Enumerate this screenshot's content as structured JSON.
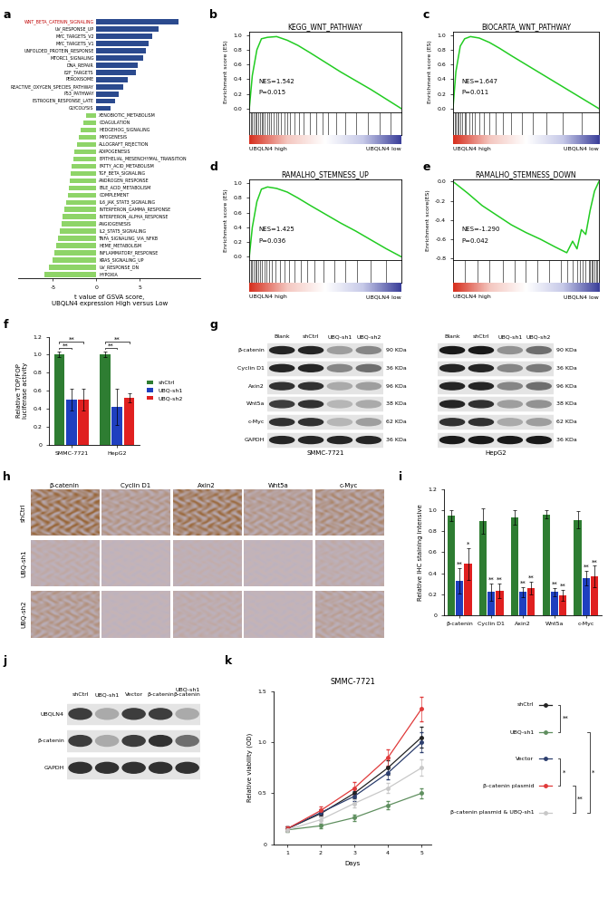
{
  "chart_data": [
    {
      "type": "bar",
      "panel": "a",
      "orientation": "horizontal",
      "tick_labels": "x",
      "x_label": "t value of GSVA score,\nUBQLN4 expression High versus Low",
      "categories": [
        "WNT_BETA_CATENIN_SIGNALING",
        "UV_RESPONSE_UP",
        "MYC_TARGETS_V2",
        "MYC_TARGETS_V1",
        "UNFOLDED_PROTEIN_RESPONSE",
        "MTORC1_SIGNALING",
        "DNA_REPAIR",
        "E2F_TARGETS",
        "PEROXISOME",
        "REACTIVE_OXYGEN_SPECIES_PATHWAY",
        "P53_PATHWAY",
        "ESTROGEN_RESPONSE_LATE",
        "GLYCOLYSIS",
        "XENOBIOTIC_METABOLISM",
        "COAGULATION",
        "HEDGEHOG_SIGNALING",
        "MYOGENESIS",
        "ALLOGRAFT_REJECTION",
        "ADIPOGENESIS",
        "EPITHELIAL_MESENCHYMAL_TRANSITION",
        "FATTY_ACID_METABOLISM",
        "TGF_BETA_SIGNALING",
        "ANDROGEN_RESPONSE",
        "BILE_ACID_METABOLISM",
        "COMPLEMENT",
        "IL6_JAK_STAT3_SIGNALING",
        "INTERFERON_GAMMA_RESPONSE",
        "INTERFERON_ALPHA_RESPONSE",
        "ANGIOGENESIS",
        "IL2_STAT5_SIGNALING",
        "TNFA_SIGNALING_VIA_NFKB",
        "HEME_METABOLISM",
        "INFLAMMATORY_RESPONSE",
        "KRAS_SIGNALING_UP",
        "UV_RESPONSE_DN",
        "HYPOXIA"
      ],
      "values": [
        9.5,
        7.2,
        6.4,
        6.0,
        5.7,
        5.4,
        4.8,
        4.5,
        3.6,
        3.1,
        2.6,
        2.1,
        1.6,
        -1.2,
        -1.5,
        -1.8,
        -2.0,
        -2.2,
        -2.5,
        -2.7,
        -2.9,
        -3.0,
        -3.1,
        -3.2,
        -3.3,
        -3.5,
        -3.7,
        -3.9,
        -4.0,
        -4.2,
        -4.4,
        -4.6,
        -4.8,
        -5.0,
        -5.5,
        -6.0
      ],
      "colors": [
        "#2b4a8e",
        "#2b4a8e",
        "#2b4a8e",
        "#2b4a8e",
        "#2b4a8e",
        "#2b4a8e",
        "#2b4a8e",
        "#2b4a8e",
        "#2b4a8e",
        "#2b4a8e",
        "#2b4a8e",
        "#2b4a8e",
        "#2b4a8e",
        "#8ed468",
        "#8ed468",
        "#8ed468",
        "#8ed468",
        "#8ed468",
        "#8ed468",
        "#8ed468",
        "#8ed468",
        "#8ed468",
        "#8ed468",
        "#8ed468",
        "#8ed468",
        "#8ed468",
        "#8ed468",
        "#8ed468",
        "#8ed468",
        "#8ed468",
        "#8ed468",
        "#8ed468",
        "#8ed468",
        "#8ed468",
        "#8ed468",
        "#8ed468"
      ],
      "xlim": [
        -9,
        12
      ],
      "xticks": [
        -5,
        0,
        5
      ]
    },
    {
      "type": "gsea",
      "panel": "b",
      "title": "KEGG_WNT_PATHWAY",
      "y_label": "Enrichment score (ES)",
      "color": "#22cc22",
      "tick_labels": "y",
      "x": [
        0,
        2,
        5,
        8,
        12,
        18,
        25,
        32,
        40,
        50,
        60,
        70,
        80,
        90,
        100
      ],
      "values": [
        0,
        0.45,
        0.8,
        0.95,
        0.97,
        0.98,
        0.93,
        0.86,
        0.76,
        0.63,
        0.5,
        0.38,
        0.26,
        0.13,
        0
      ],
      "hits": [
        1,
        2,
        3,
        4,
        5,
        6,
        7,
        8,
        9,
        10,
        12,
        13,
        14,
        16,
        18,
        19,
        21,
        23,
        25,
        27,
        30,
        33,
        36,
        40,
        44,
        48,
        52,
        57,
        63,
        70,
        78,
        86,
        93
      ],
      "xlim": [
        0,
        100
      ],
      "xticks": [],
      "ylim": [
        -0.05,
        1.05
      ],
      "yticks": [
        0.0,
        0.2,
        0.4,
        0.6,
        0.8,
        1.0
      ],
      "annotations": [
        "NES=1.542",
        "P=0.015"
      ],
      "x_labels": [
        "UBQLN4 high",
        "UBQLN4 low"
      ]
    },
    {
      "type": "gsea",
      "panel": "c",
      "title": "BIOCARTA_WNT_PATHWAY",
      "y_label": "Enrichment score (ES)",
      "color": "#22cc22",
      "tick_labels": "y",
      "x": [
        0,
        2,
        5,
        8,
        12,
        18,
        25,
        32,
        40,
        50,
        60,
        70,
        80,
        90,
        100
      ],
      "values": [
        0,
        0.5,
        0.85,
        0.95,
        0.98,
        0.96,
        0.9,
        0.82,
        0.72,
        0.6,
        0.48,
        0.36,
        0.24,
        0.12,
        0
      ],
      "hits": [
        1,
        2,
        3,
        4,
        5,
        6,
        8,
        9,
        11,
        13,
        15,
        18,
        21,
        25,
        29,
        34,
        40,
        47,
        55,
        64,
        75,
        88
      ],
      "xlim": [
        0,
        100
      ],
      "xticks": [],
      "ylim": [
        -0.05,
        1.05
      ],
      "yticks": [
        0.0,
        0.2,
        0.4,
        0.6,
        0.8,
        1.0
      ],
      "annotations": [
        "NES=1.647",
        "P=0.011"
      ],
      "x_labels": [
        "UBQLN4 high",
        "UBQLN4 low"
      ]
    },
    {
      "type": "gsea",
      "panel": "d",
      "title": "RAMALHO_STEMNESS_UP",
      "y_label": "Enrichment score (ES)",
      "color": "#22cc22",
      "tick_labels": "y",
      "x": [
        0,
        2,
        5,
        8,
        12,
        18,
        25,
        32,
        40,
        50,
        60,
        70,
        80,
        90,
        100
      ],
      "values": [
        0,
        0.4,
        0.75,
        0.92,
        0.95,
        0.93,
        0.88,
        0.8,
        0.7,
        0.58,
        0.46,
        0.35,
        0.23,
        0.11,
        0
      ],
      "hits": [
        1,
        2,
        3,
        4,
        5,
        6,
        7,
        8,
        10,
        11,
        13,
        15,
        17,
        20,
        23,
        26,
        30,
        34,
        38,
        43,
        49,
        56,
        63,
        71,
        80,
        90
      ],
      "xlim": [
        0,
        100
      ],
      "xticks": [],
      "ylim": [
        -0.05,
        1.05
      ],
      "yticks": [
        0.0,
        0.2,
        0.4,
        0.6,
        0.8,
        1.0
      ],
      "annotations": [
        "NES=1.425",
        "P=0.036"
      ],
      "x_labels": [
        "UBQLN4 high",
        "UBQLN4 low"
      ]
    },
    {
      "type": "gsea",
      "panel": "e",
      "title": "RAMALHO_STEMNESS_DOWN",
      "y_label": "Enrichment score(ES)",
      "color": "#22cc22",
      "tick_labels": "y",
      "x": [
        0,
        10,
        20,
        30,
        40,
        50,
        60,
        70,
        78,
        82,
        85,
        88,
        91,
        94,
        97,
        100
      ],
      "values": [
        0,
        -0.12,
        -0.25,
        -0.35,
        -0.45,
        -0.53,
        -0.6,
        -0.68,
        -0.74,
        -0.62,
        -0.7,
        -0.5,
        -0.55,
        -0.3,
        -0.1,
        0
      ],
      "hits": [
        8,
        17,
        25,
        34,
        42,
        50,
        58,
        66,
        74,
        78,
        82,
        85,
        87,
        89,
        91,
        93,
        94,
        95,
        96,
        97,
        98,
        99
      ],
      "xlim": [
        0,
        100
      ],
      "xticks": [],
      "ylim": [
        -0.82,
        0.02
      ],
      "yticks": [
        -0.8,
        -0.6,
        -0.4,
        -0.2,
        0.0
      ],
      "annotations": [
        "NES=-1.290",
        "P=0.042"
      ],
      "x_labels": [
        "UBQLN4 high",
        "UBQLN4 low"
      ]
    },
    {
      "type": "bar",
      "panel": "f",
      "y_label": "Relative TOP/FOP\nluciferase activity",
      "legend": "right",
      "categories": [
        "SMMC-7721",
        "HepG2"
      ],
      "series": [
        {
          "name": "shCtrl",
          "color": "#2e7d32",
          "values": [
            1.0,
            1.0
          ],
          "errors": [
            0.03,
            0.03
          ]
        },
        {
          "name": "UBQ-sh1",
          "color": "#1f3fbf",
          "values": [
            0.5,
            0.42
          ],
          "errors": [
            0.12,
            0.2
          ]
        },
        {
          "name": "UBQ-sh2",
          "color": "#e02020",
          "values": [
            0.5,
            0.52
          ],
          "errors": [
            0.12,
            0.05
          ]
        }
      ],
      "significance": [
        {
          "category": 0,
          "pair": [
            0,
            1
          ],
          "text": "**"
        },
        {
          "category": 0,
          "pair": [
            0,
            2
          ],
          "text": "**"
        },
        {
          "category": 1,
          "pair": [
            0,
            1
          ],
          "text": "**"
        },
        {
          "category": 1,
          "pair": [
            0,
            2
          ],
          "text": "**"
        }
      ],
      "ylim": [
        0,
        1.2
      ],
      "yticks": [
        0,
        0.2,
        0.4,
        0.6,
        0.8,
        1.0,
        1.2
      ]
    },
    {
      "type": "blot",
      "panel": "g",
      "columns": [
        "Blank",
        "shCtrl",
        "UBQ-sh1",
        "UBQ-sh2"
      ],
      "rows": [
        "β-catenin",
        "Cyclin D1",
        "Axin2",
        "Wnt5a",
        "c-Myc",
        "GAPDH"
      ],
      "sizes": [
        "90 KDa",
        "36 KDa",
        "96 KDa",
        "38 KDa",
        "62 KDa",
        "36 KDa"
      ],
      "blocks": [
        {
          "name": "SMMC-7721",
          "intensity": [
            [
              0.9,
              0.9,
              0.4,
              0.5
            ],
            [
              0.9,
              0.9,
              0.5,
              0.6
            ],
            [
              0.85,
              0.85,
              0.35,
              0.4
            ],
            [
              0.8,
              0.85,
              0.3,
              0.35
            ],
            [
              0.85,
              0.85,
              0.3,
              0.4
            ],
            [
              0.9,
              0.9,
              0.9,
              0.9
            ]
          ]
        },
        {
          "name": "HepG2",
          "intensity": [
            [
              0.95,
              0.95,
              0.45,
              0.6
            ],
            [
              0.9,
              0.9,
              0.5,
              0.55
            ],
            [
              0.9,
              0.9,
              0.5,
              0.6
            ],
            [
              0.9,
              0.85,
              0.4,
              0.45
            ],
            [
              0.85,
              0.85,
              0.35,
              0.4
            ],
            [
              0.95,
              0.95,
              0.95,
              0.95
            ]
          ]
        }
      ]
    },
    {
      "type": "ihc",
      "panel": "h",
      "columns": [
        "β-catenin",
        "Cyclin D1",
        "Axin2",
        "Wnt5a",
        "c-Myc"
      ],
      "rows": [
        "shCtrl",
        "UBQ-sh1",
        "UBQ-sh2"
      ],
      "stain": [
        [
          0.9,
          0.5,
          0.85,
          0.5,
          0.6
        ],
        [
          0.3,
          0.2,
          0.25,
          0.2,
          0.3
        ],
        [
          0.5,
          0.2,
          0.3,
          0.2,
          0.4
        ]
      ]
    },
    {
      "type": "bar",
      "panel": "i",
      "y_label": "Relative IHC staining intensive",
      "categories": [
        "β-catenin",
        "Cyclin D1",
        "Axin2",
        "Wnt5a",
        "c-Myc"
      ],
      "series": [
        {
          "color": "#2e7d32",
          "values": [
            0.95,
            0.9,
            0.93,
            0.96,
            0.91
          ],
          "errors": [
            0.05,
            0.12,
            0.07,
            0.04,
            0.08
          ]
        },
        {
          "color": "#1f3fbf",
          "values": [
            0.33,
            0.22,
            0.22,
            0.22,
            0.35
          ],
          "errors": [
            0.12,
            0.08,
            0.05,
            0.04,
            0.07
          ],
          "significance": [
            "**",
            "**",
            "**",
            "**",
            "**"
          ]
        },
        {
          "color": "#e02020",
          "values": [
            0.49,
            0.23,
            0.26,
            0.19,
            0.37
          ],
          "errors": [
            0.15,
            0.07,
            0.06,
            0.05,
            0.1
          ],
          "significance": [
            "*",
            "**",
            "**",
            "**",
            "**"
          ]
        }
      ],
      "ylim": [
        0,
        1.2
      ],
      "yticks": [
        0,
        0.2,
        0.4,
        0.6,
        0.8,
        1.0,
        1.2
      ]
    },
    {
      "type": "blot",
      "panel": "j",
      "columns": [
        "shCtrl",
        "UBQ-sh1",
        "Vector",
        "β-catenin",
        "UBQ-sh1\nβ-catenin"
      ],
      "rows": [
        "UBQLN4",
        "β-catenin",
        "GAPDH"
      ],
      "blocks": [
        {
          "intensity": [
            [
              0.8,
              0.35,
              0.8,
              0.8,
              0.35
            ],
            [
              0.8,
              0.35,
              0.8,
              0.85,
              0.6
            ],
            [
              0.85,
              0.85,
              0.85,
              0.85,
              0.85
            ]
          ]
        }
      ]
    },
    {
      "type": "line",
      "panel": "k",
      "title": "SMMC-7721",
      "x_label": "Days",
      "y_label": "Relative viability (OD)",
      "marker": "o",
      "legend": "right",
      "x": [
        1,
        2,
        3,
        4,
        5
      ],
      "series": [
        {
          "name": "shCtrl",
          "color": "#222222",
          "values": [
            0.15,
            0.3,
            0.5,
            0.75,
            1.05
          ],
          "errors": [
            0.02,
            0.03,
            0.05,
            0.07,
            0.1
          ]
        },
        {
          "name": "UBQ-sh1",
          "color": "#5f8f5f",
          "values": [
            0.14,
            0.18,
            0.26,
            0.38,
            0.5
          ],
          "errors": [
            0.02,
            0.02,
            0.03,
            0.04,
            0.05
          ]
        },
        {
          "name": "Vector",
          "color": "#2c3e6e",
          "values": [
            0.15,
            0.31,
            0.47,
            0.7,
            1.0
          ],
          "errors": [
            0.02,
            0.03,
            0.05,
            0.06,
            0.1
          ]
        },
        {
          "name": "β-catenin plasmid",
          "color": "#e03a3a",
          "values": [
            0.15,
            0.33,
            0.55,
            0.85,
            1.33
          ],
          "errors": [
            0.02,
            0.04,
            0.06,
            0.08,
            0.12
          ]
        },
        {
          "name": "β-catenin plasmid & UBQ-sh1",
          "color": "#c8c8c8",
          "values": [
            0.14,
            0.24,
            0.4,
            0.55,
            0.75
          ],
          "errors": [
            0.02,
            0.03,
            0.04,
            0.05,
            0.08
          ]
        }
      ],
      "significance": [
        {
          "pair": [
            0,
            1
          ],
          "text": "**"
        },
        {
          "pair": [
            1,
            4
          ],
          "text": "*"
        },
        {
          "pair": [
            2,
            3
          ],
          "text": "*"
        },
        {
          "pair": [
            3,
            4
          ],
          "text": "**"
        }
      ],
      "xlim": [
        0.6,
        5.3
      ],
      "xticks": [
        1,
        2,
        3,
        4,
        5
      ],
      "ylim": [
        0,
        1.5
      ],
      "yticks": [
        0,
        0.5,
        1.0,
        1.5
      ]
    }
  ]
}
